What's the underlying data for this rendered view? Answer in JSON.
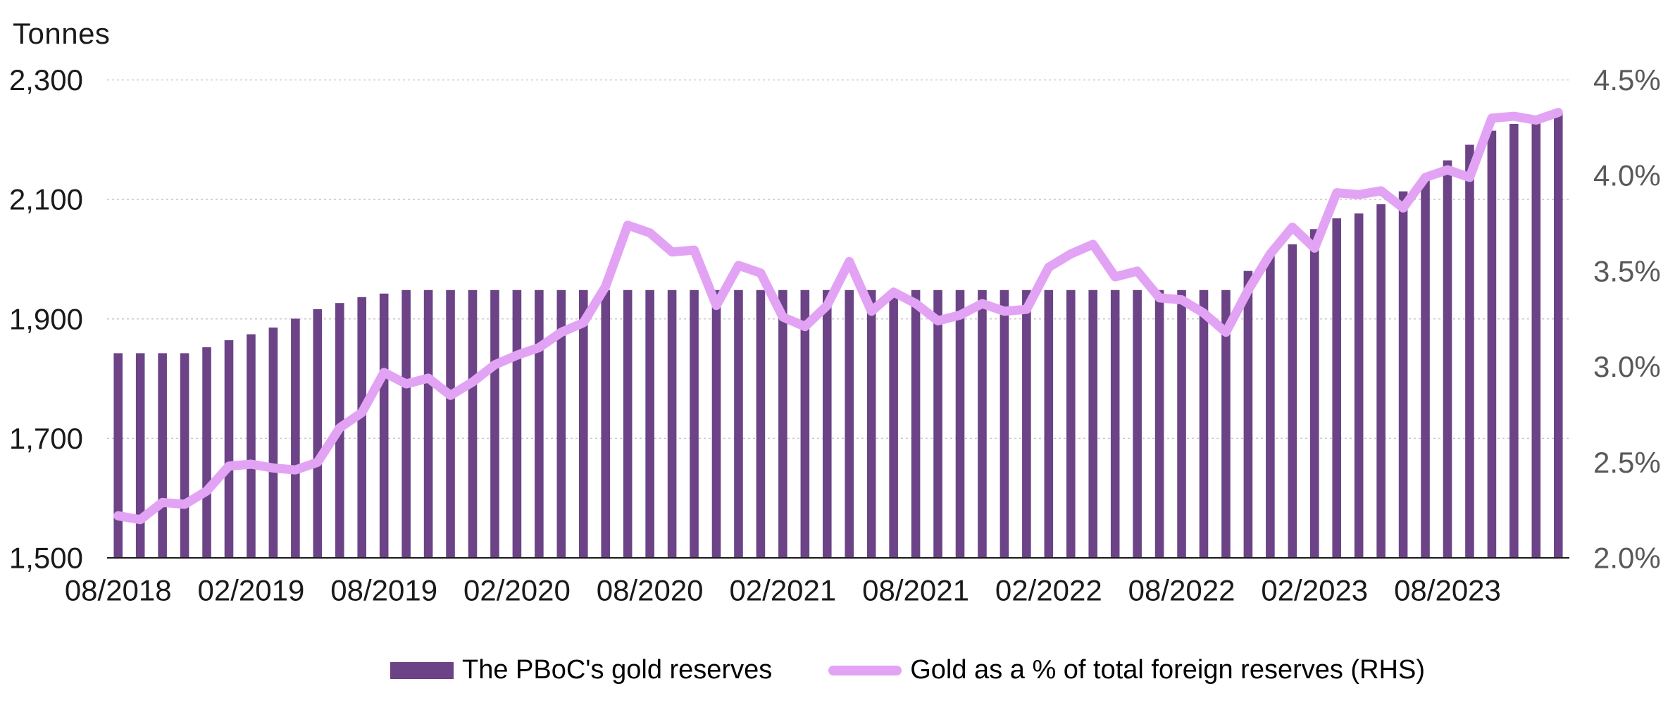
{
  "chart_data": {
    "type": "bar+line",
    "categories": [
      "08/2018",
      "09/2018",
      "10/2018",
      "11/2018",
      "12/2018",
      "01/2019",
      "02/2019",
      "03/2019",
      "04/2019",
      "05/2019",
      "06/2019",
      "07/2019",
      "08/2019",
      "09/2019",
      "10/2019",
      "11/2019",
      "12/2019",
      "01/2020",
      "02/2020",
      "03/2020",
      "04/2020",
      "05/2020",
      "06/2020",
      "07/2020",
      "08/2020",
      "09/2020",
      "10/2020",
      "11/2020",
      "12/2020",
      "01/2021",
      "02/2021",
      "03/2021",
      "04/2021",
      "05/2021",
      "06/2021",
      "07/2021",
      "08/2021",
      "09/2021",
      "10/2021",
      "11/2021",
      "12/2021",
      "01/2022",
      "02/2022",
      "03/2022",
      "04/2022",
      "05/2022",
      "06/2022",
      "07/2022",
      "08/2022",
      "09/2022",
      "10/2022",
      "11/2022",
      "12/2022",
      "01/2023",
      "02/2023",
      "03/2023",
      "04/2023",
      "05/2023",
      "06/2023",
      "07/2023",
      "08/2023",
      "09/2023",
      "10/2023",
      "11/2023",
      "12/2023",
      "01/2024"
    ],
    "x_tick_labels": [
      "08/2018",
      "02/2019",
      "08/2019",
      "02/2020",
      "08/2020",
      "02/2021",
      "08/2021",
      "02/2022",
      "08/2022",
      "02/2023",
      "08/2023"
    ],
    "series": [
      {
        "name": "The PBoC's gold reserves",
        "type": "bar",
        "axis": "left",
        "color": "#6B4386",
        "values": [
          1842.6,
          1842.6,
          1842.6,
          1842.6,
          1852.5,
          1864.3,
          1874.3,
          1885.5,
          1900.4,
          1916.3,
          1926.6,
          1936.5,
          1942.4,
          1948.3,
          1948.3,
          1948.3,
          1948.3,
          1948.3,
          1948.3,
          1948.3,
          1948.3,
          1948.3,
          1948.3,
          1948.3,
          1948.3,
          1948.3,
          1948.3,
          1948.3,
          1948.3,
          1948.3,
          1948.3,
          1948.3,
          1948.3,
          1948.3,
          1948.3,
          1948.3,
          1948.3,
          1948.3,
          1948.3,
          1948.3,
          1948.3,
          1948.3,
          1948.3,
          1948.3,
          1948.3,
          1948.3,
          1948.3,
          1948.3,
          1948.3,
          1948.3,
          1948.3,
          1980.3,
          2010.5,
          2024.9,
          2050.3,
          2068.4,
          2076.5,
          2092.0,
          2113.5,
          2136.5,
          2165.4,
          2191.5,
          2215.0,
          2226.4,
          2235.4,
          2245.3
        ]
      },
      {
        "name": "Gold as a % of total foreign reserves (RHS)",
        "type": "line",
        "axis": "right",
        "color": "#E3A3F5",
        "values": [
          2.22,
          2.2,
          2.29,
          2.28,
          2.35,
          2.48,
          2.49,
          2.47,
          2.46,
          2.5,
          2.68,
          2.76,
          2.97,
          2.91,
          2.94,
          2.85,
          2.92,
          3.01,
          3.06,
          3.1,
          3.18,
          3.23,
          3.42,
          3.74,
          3.7,
          3.6,
          3.61,
          3.32,
          3.53,
          3.49,
          3.26,
          3.21,
          3.32,
          3.55,
          3.29,
          3.39,
          3.33,
          3.24,
          3.27,
          3.33,
          3.29,
          3.3,
          3.52,
          3.59,
          3.64,
          3.47,
          3.5,
          3.36,
          3.35,
          3.28,
          3.18,
          3.4,
          3.59,
          3.73,
          3.62,
          3.91,
          3.9,
          3.92,
          3.83,
          3.99,
          4.03,
          3.99,
          4.3,
          4.31,
          4.29,
          4.33
        ]
      }
    ],
    "left_axis": {
      "title": "Tonnes",
      "min": 1500,
      "max": 2300,
      "tick_values": [
        2300,
        2100,
        1900,
        1700,
        1500
      ],
      "tick_labels": [
        "2,300",
        "2,100",
        "1,900",
        "1,700",
        "1,500"
      ],
      "text_color": "#1a1a1a"
    },
    "right_axis": {
      "min": 2.0,
      "max": 4.5,
      "tick_values": [
        4.5,
        4.0,
        3.5,
        3.0,
        2.5,
        2.0
      ],
      "tick_labels": [
        "4.5%",
        "4.0%",
        "3.5%",
        "3.0%",
        "2.5%",
        "2.0%"
      ],
      "text_color": "#595959"
    },
    "grid_color": "#C9C9C9",
    "axis_line_color": "#1a1a1a",
    "legend_position": "bottom-center"
  }
}
